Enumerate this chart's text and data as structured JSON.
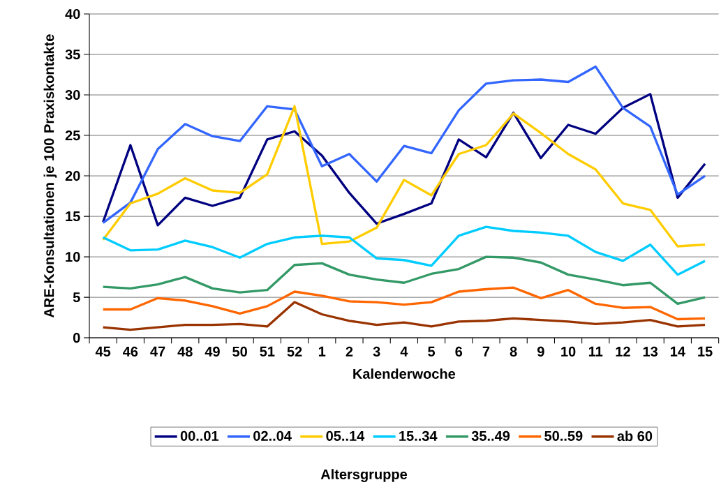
{
  "chart_data": {
    "type": "line",
    "xlabel": "Kalenderwoche",
    "ylabel": "ARE-Konsultationen je 100 Praxiskontakte",
    "legend_title": "Altersgruppe",
    "categories": [
      "45",
      "46",
      "47",
      "48",
      "49",
      "50",
      "51",
      "52",
      "1",
      "2",
      "3",
      "4",
      "5",
      "6",
      "7",
      "8",
      "9",
      "10",
      "11",
      "12",
      "13",
      "14",
      "15"
    ],
    "series": [
      {
        "name": "00..01",
        "color": "#000080",
        "values": [
          14.3,
          23.8,
          13.9,
          17.3,
          16.3,
          17.3,
          24.5,
          25.5,
          22.5,
          17.9,
          14.1,
          15.3,
          16.6,
          24.5,
          22.3,
          27.8,
          22.2,
          26.3,
          25.2,
          28.4,
          30.1,
          17.3,
          21.5
        ]
      },
      {
        "name": "02..04",
        "color": "#3366ff",
        "values": [
          14.2,
          16.7,
          23.3,
          26.4,
          24.9,
          24.3,
          28.6,
          28.2,
          21.2,
          22.7,
          19.3,
          23.7,
          22.8,
          28.1,
          31.4,
          31.8,
          31.9,
          31.6,
          33.5,
          28.4,
          26.1,
          17.7,
          20.0
        ]
      },
      {
        "name": "05..14",
        "color": "#ffcc00",
        "values": [
          12.1,
          16.6,
          17.8,
          19.7,
          18.2,
          17.9,
          20.2,
          28.6,
          11.6,
          11.9,
          13.6,
          19.5,
          17.6,
          22.7,
          23.8,
          27.7,
          25.3,
          22.7,
          20.8,
          16.6,
          15.8,
          11.3,
          11.5
        ]
      },
      {
        "name": "15..34",
        "color": "#00ccff",
        "values": [
          12.4,
          10.8,
          10.9,
          12.0,
          11.2,
          9.9,
          11.6,
          12.4,
          12.6,
          12.4,
          9.8,
          9.6,
          8.9,
          12.6,
          13.7,
          13.2,
          13.0,
          12.6,
          10.6,
          9.5,
          11.5,
          7.8,
          9.5
        ]
      },
      {
        "name": "35..49",
        "color": "#339966",
        "values": [
          6.3,
          6.1,
          6.6,
          7.5,
          6.1,
          5.6,
          5.9,
          9.0,
          9.2,
          7.8,
          7.2,
          6.8,
          7.9,
          8.5,
          10.0,
          9.9,
          9.3,
          7.8,
          7.2,
          6.5,
          6.8,
          4.2,
          5.0
        ]
      },
      {
        "name": "50..59",
        "color": "#ff6600",
        "values": [
          3.5,
          3.5,
          4.9,
          4.6,
          3.9,
          3.0,
          3.9,
          5.7,
          5.2,
          4.5,
          4.4,
          4.1,
          4.4,
          5.7,
          6.0,
          6.2,
          4.9,
          5.9,
          4.2,
          3.7,
          3.8,
          2.3,
          2.4
        ]
      },
      {
        "name": "ab 60",
        "color": "#993300",
        "values": [
          1.3,
          1.0,
          1.3,
          1.6,
          1.6,
          1.7,
          1.4,
          4.4,
          2.9,
          2.1,
          1.6,
          1.9,
          1.4,
          2.0,
          2.1,
          2.4,
          2.2,
          2.0,
          1.7,
          1.9,
          2.2,
          1.4,
          1.6
        ]
      }
    ],
    "ylim": [
      0,
      40
    ],
    "yticks": [
      0,
      5,
      10,
      15,
      20,
      25,
      30,
      35,
      40
    ],
    "grid": "y",
    "legend": "bottom",
    "marker": "none",
    "line_style": "solid"
  }
}
